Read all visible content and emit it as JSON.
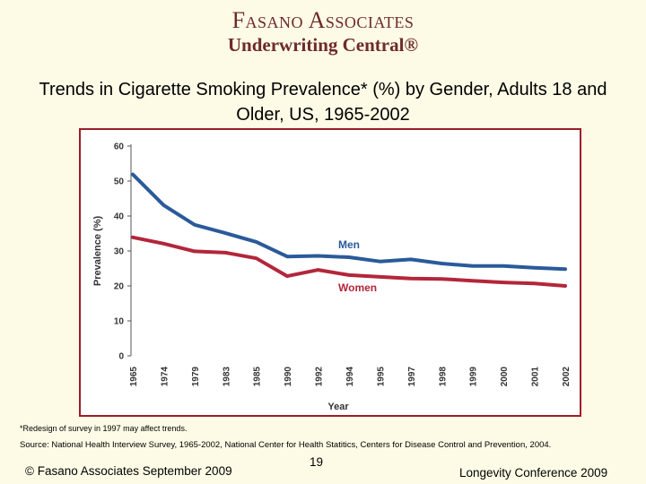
{
  "logo": {
    "line1": "Fasano Associates",
    "line2": "Underwriting Central®"
  },
  "slide_title": "Trends in Cigarette Smoking Prevalence* (%) by Gender, Adults 18 and Older, US, 1965-2002",
  "chart_data": {
    "type": "line",
    "title": "Trends in Cigarette Smoking Prevalence* (%) by Gender, Adults 18 and Older, US, 1965-2002",
    "categories": [
      "1965",
      "1974",
      "1979",
      "1983",
      "1985",
      "1990",
      "1992",
      "1994",
      "1995",
      "1997",
      "1998",
      "1999",
      "2000",
      "2001",
      "2002"
    ],
    "series": [
      {
        "name": "Men",
        "color": "#2a5a9a",
        "values": [
          51.9,
          43.1,
          37.5,
          35.1,
          32.6,
          28.4,
          28.6,
          28.2,
          27.0,
          27.6,
          26.4,
          25.7,
          25.7,
          25.2,
          24.8
        ]
      },
      {
        "name": "Women",
        "color": "#b3263a",
        "values": [
          33.9,
          32.1,
          29.9,
          29.5,
          27.9,
          22.8,
          24.6,
          23.1,
          22.6,
          22.1,
          22.0,
          21.5,
          21.0,
          20.7,
          20.0
        ]
      }
    ],
    "xlabel": "Year",
    "ylabel": "Prevalence (%)",
    "ylim": [
      0,
      60
    ],
    "yticks": [
      0,
      10,
      20,
      30,
      40,
      50,
      60
    ]
  },
  "footnote": "*Redesign of survey in 1997 may affect trends.",
  "source": "Source: National Health Interview Survey, 1965-2002, National Center for Health Statitics, Centers for Disease Control and Prevention, 2004.",
  "footer": {
    "left": "© Fasano Associates September 2009",
    "page": "19",
    "right": "Longevity Conference 2009"
  }
}
